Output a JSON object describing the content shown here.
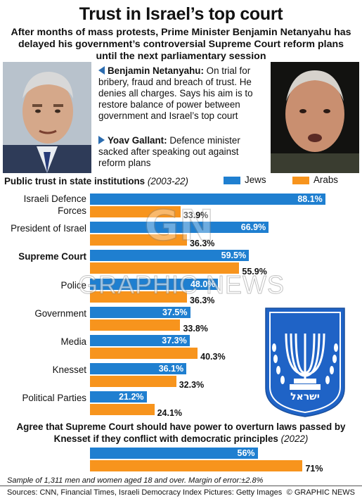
{
  "header": {
    "title": "Trust in Israel’s top court",
    "subtitle": "After months of mass protests, Prime Minister Benjamin Netanyahu has delayed his government’s controversial Supreme Court reform plans until the next parliamentary session"
  },
  "bios": [
    {
      "name": "Benjamin Netanyahu:",
      "text": "On trial for bribery, fraud and breach of trust. He denies all charges. Says his aim is to restore balance of power between government and Israel’s top court"
    },
    {
      "name": "Yoav Gallant:",
      "text": "Defence minister sacked after speaking out against reform plans"
    }
  ],
  "chart_data": [
    {
      "type": "bar",
      "title": "Public trust in state institutions",
      "period": "(2003-22)",
      "categories": [
        "Israeli Defence Forces",
        "President of Israel",
        "Supreme Court",
        "Police",
        "Government",
        "Media",
        "Knesset",
        "Political Parties"
      ],
      "category_lines": [
        [
          "Israeli Defence",
          "Forces"
        ],
        [
          "President of Israel"
        ],
        [
          "Supreme Court"
        ],
        [
          "Police"
        ],
        [
          "Government"
        ],
        [
          "Media"
        ],
        [
          "Knesset"
        ],
        [
          "Political Parties"
        ]
      ],
      "highlight": "Supreme Court",
      "series": [
        {
          "name": "Jews",
          "values": [
            88.1,
            66.9,
            59.5,
            48.0,
            37.5,
            37.3,
            36.1,
            21.2
          ],
          "labels": [
            "88.1%",
            "66.9%",
            "59.5%",
            "48.0%",
            "37.5%",
            "37.3%",
            "36.1%",
            "21.2%"
          ],
          "color": "#1f7fd0"
        },
        {
          "name": "Arabs",
          "values": [
            33.9,
            36.3,
            55.9,
            36.3,
            33.8,
            40.3,
            32.3,
            24.1
          ],
          "labels": [
            "33.9%",
            "36.3%",
            "55.9%",
            "36.3%",
            "33.8%",
            "40.3%",
            "32.3%",
            "24.1%"
          ],
          "color": "#f7941d"
        }
      ],
      "xlim": [
        0,
        100
      ]
    },
    {
      "type": "bar",
      "title": "Agree that Supreme Court should have power to overturn laws passed by Knesset if they conflict with democratic principles",
      "period": "(2022)",
      "series": [
        {
          "name": "Jews",
          "values": [
            56
          ],
          "labels": [
            "56%"
          ],
          "color": "#1f7fd0"
        },
        {
          "name": "Arabs",
          "values": [
            71
          ],
          "labels": [
            "71%"
          ],
          "color": "#f7941d"
        }
      ],
      "xlim": [
        0,
        100
      ]
    }
  ],
  "footer": {
    "sample": "Sample of 1,311 men and women aged 18 and over. Margin of error:±2.8%",
    "sources": "Sources: CNN, Financial Times, Israeli Democracy Index  Pictures: Getty Images",
    "credit": "© GRAPHIC NEWS"
  },
  "emblem": {
    "text": "ישראל"
  },
  "watermark": {
    "logo": "GN",
    "text": "GRAPHIC NEWS"
  }
}
